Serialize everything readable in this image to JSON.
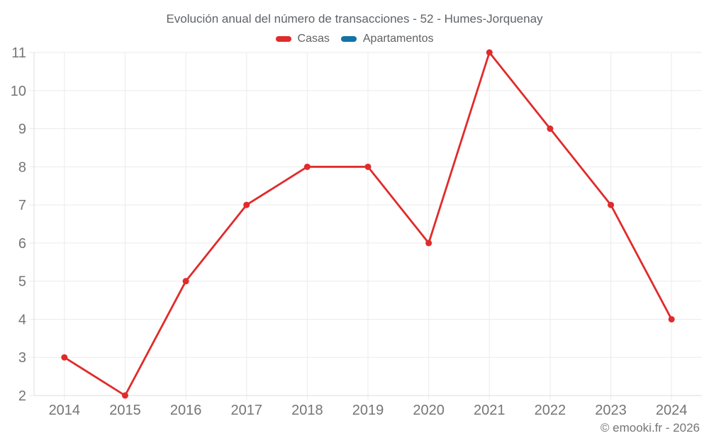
{
  "footer": {
    "copyright": "© emooki.fr - 2026"
  },
  "chart_data": {
    "type": "line",
    "title": "Evolución anual del número de transacciones - 52 - Humes-Jorquenay",
    "categories": [
      "2014",
      "2015",
      "2016",
      "2017",
      "2018",
      "2019",
      "2020",
      "2021",
      "2022",
      "2023",
      "2024"
    ],
    "series": [
      {
        "name": "Casas",
        "color": "#e02b2b",
        "values": [
          3,
          2,
          5,
          7,
          8,
          8,
          6,
          11,
          9,
          7,
          4
        ]
      },
      {
        "name": "Apartamentos",
        "color": "#1273a5",
        "values": []
      }
    ],
    "xlabel": "",
    "ylabel": "",
    "ylim": [
      2,
      11
    ],
    "yticks": [
      2,
      3,
      4,
      5,
      6,
      7,
      8,
      9,
      10,
      11
    ],
    "grid": true,
    "legend_position": "top",
    "styles": {
      "grid_color": "#ebebeb",
      "axis_line_color": "#dcdcdc",
      "tick_label_color": "#757575",
      "line_width": 2.8,
      "point_radius": 4.5,
      "tick_label_font_size": 20
    }
  }
}
